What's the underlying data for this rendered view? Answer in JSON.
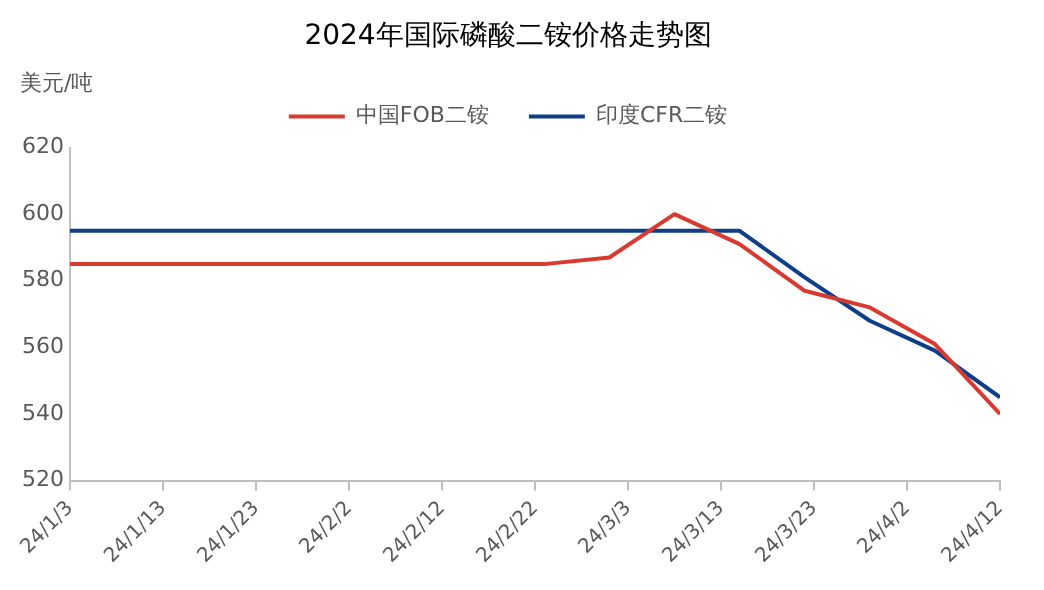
{
  "chart_data": {
    "type": "line",
    "title": "2024年国际磷酸二铵价格走势图",
    "ylabel": "美元/吨",
    "legend": "top",
    "grid": false,
    "marker": "none",
    "xlim": [
      "2024-01-03",
      "2024-04-12"
    ],
    "xticks": [
      {
        "value": "2024-01-03",
        "label": "24/1/3"
      },
      {
        "value": "2024-01-13",
        "label": "24/1/13"
      },
      {
        "value": "2024-01-23",
        "label": "24/1/23"
      },
      {
        "value": "2024-02-02",
        "label": "24/2/2"
      },
      {
        "value": "2024-02-12",
        "label": "24/2/12"
      },
      {
        "value": "2024-02-22",
        "label": "24/2/22"
      },
      {
        "value": "2024-03-03",
        "label": "24/3/3"
      },
      {
        "value": "2024-03-13",
        "label": "24/3/13"
      },
      {
        "value": "2024-03-23",
        "label": "24/3/23"
      },
      {
        "value": "2024-04-02",
        "label": "24/4/2"
      },
      {
        "value": "2024-04-12",
        "label": "24/4/12"
      }
    ],
    "ylim": [
      520,
      620
    ],
    "yticks": [
      520,
      540,
      560,
      580,
      600,
      620
    ],
    "series": [
      {
        "name": "中国FOB二铵",
        "color": "#d93a2f",
        "x": [
          "2024-01-03",
          "2024-02-23",
          "2024-03-01",
          "2024-03-08",
          "2024-03-15",
          "2024-03-22",
          "2024-03-29",
          "2024-04-05",
          "2024-04-12"
        ],
        "values": [
          585,
          585,
          587,
          600,
          591,
          577,
          572,
          561,
          540
        ]
      },
      {
        "name": "印度CFR二铵",
        "color": "#0e3e8a",
        "x": [
          "2024-01-03",
          "2024-03-15",
          "2024-03-22",
          "2024-03-29",
          "2024-04-05",
          "2024-04-12"
        ],
        "values": [
          595,
          595,
          581,
          568,
          559,
          545
        ]
      }
    ]
  }
}
